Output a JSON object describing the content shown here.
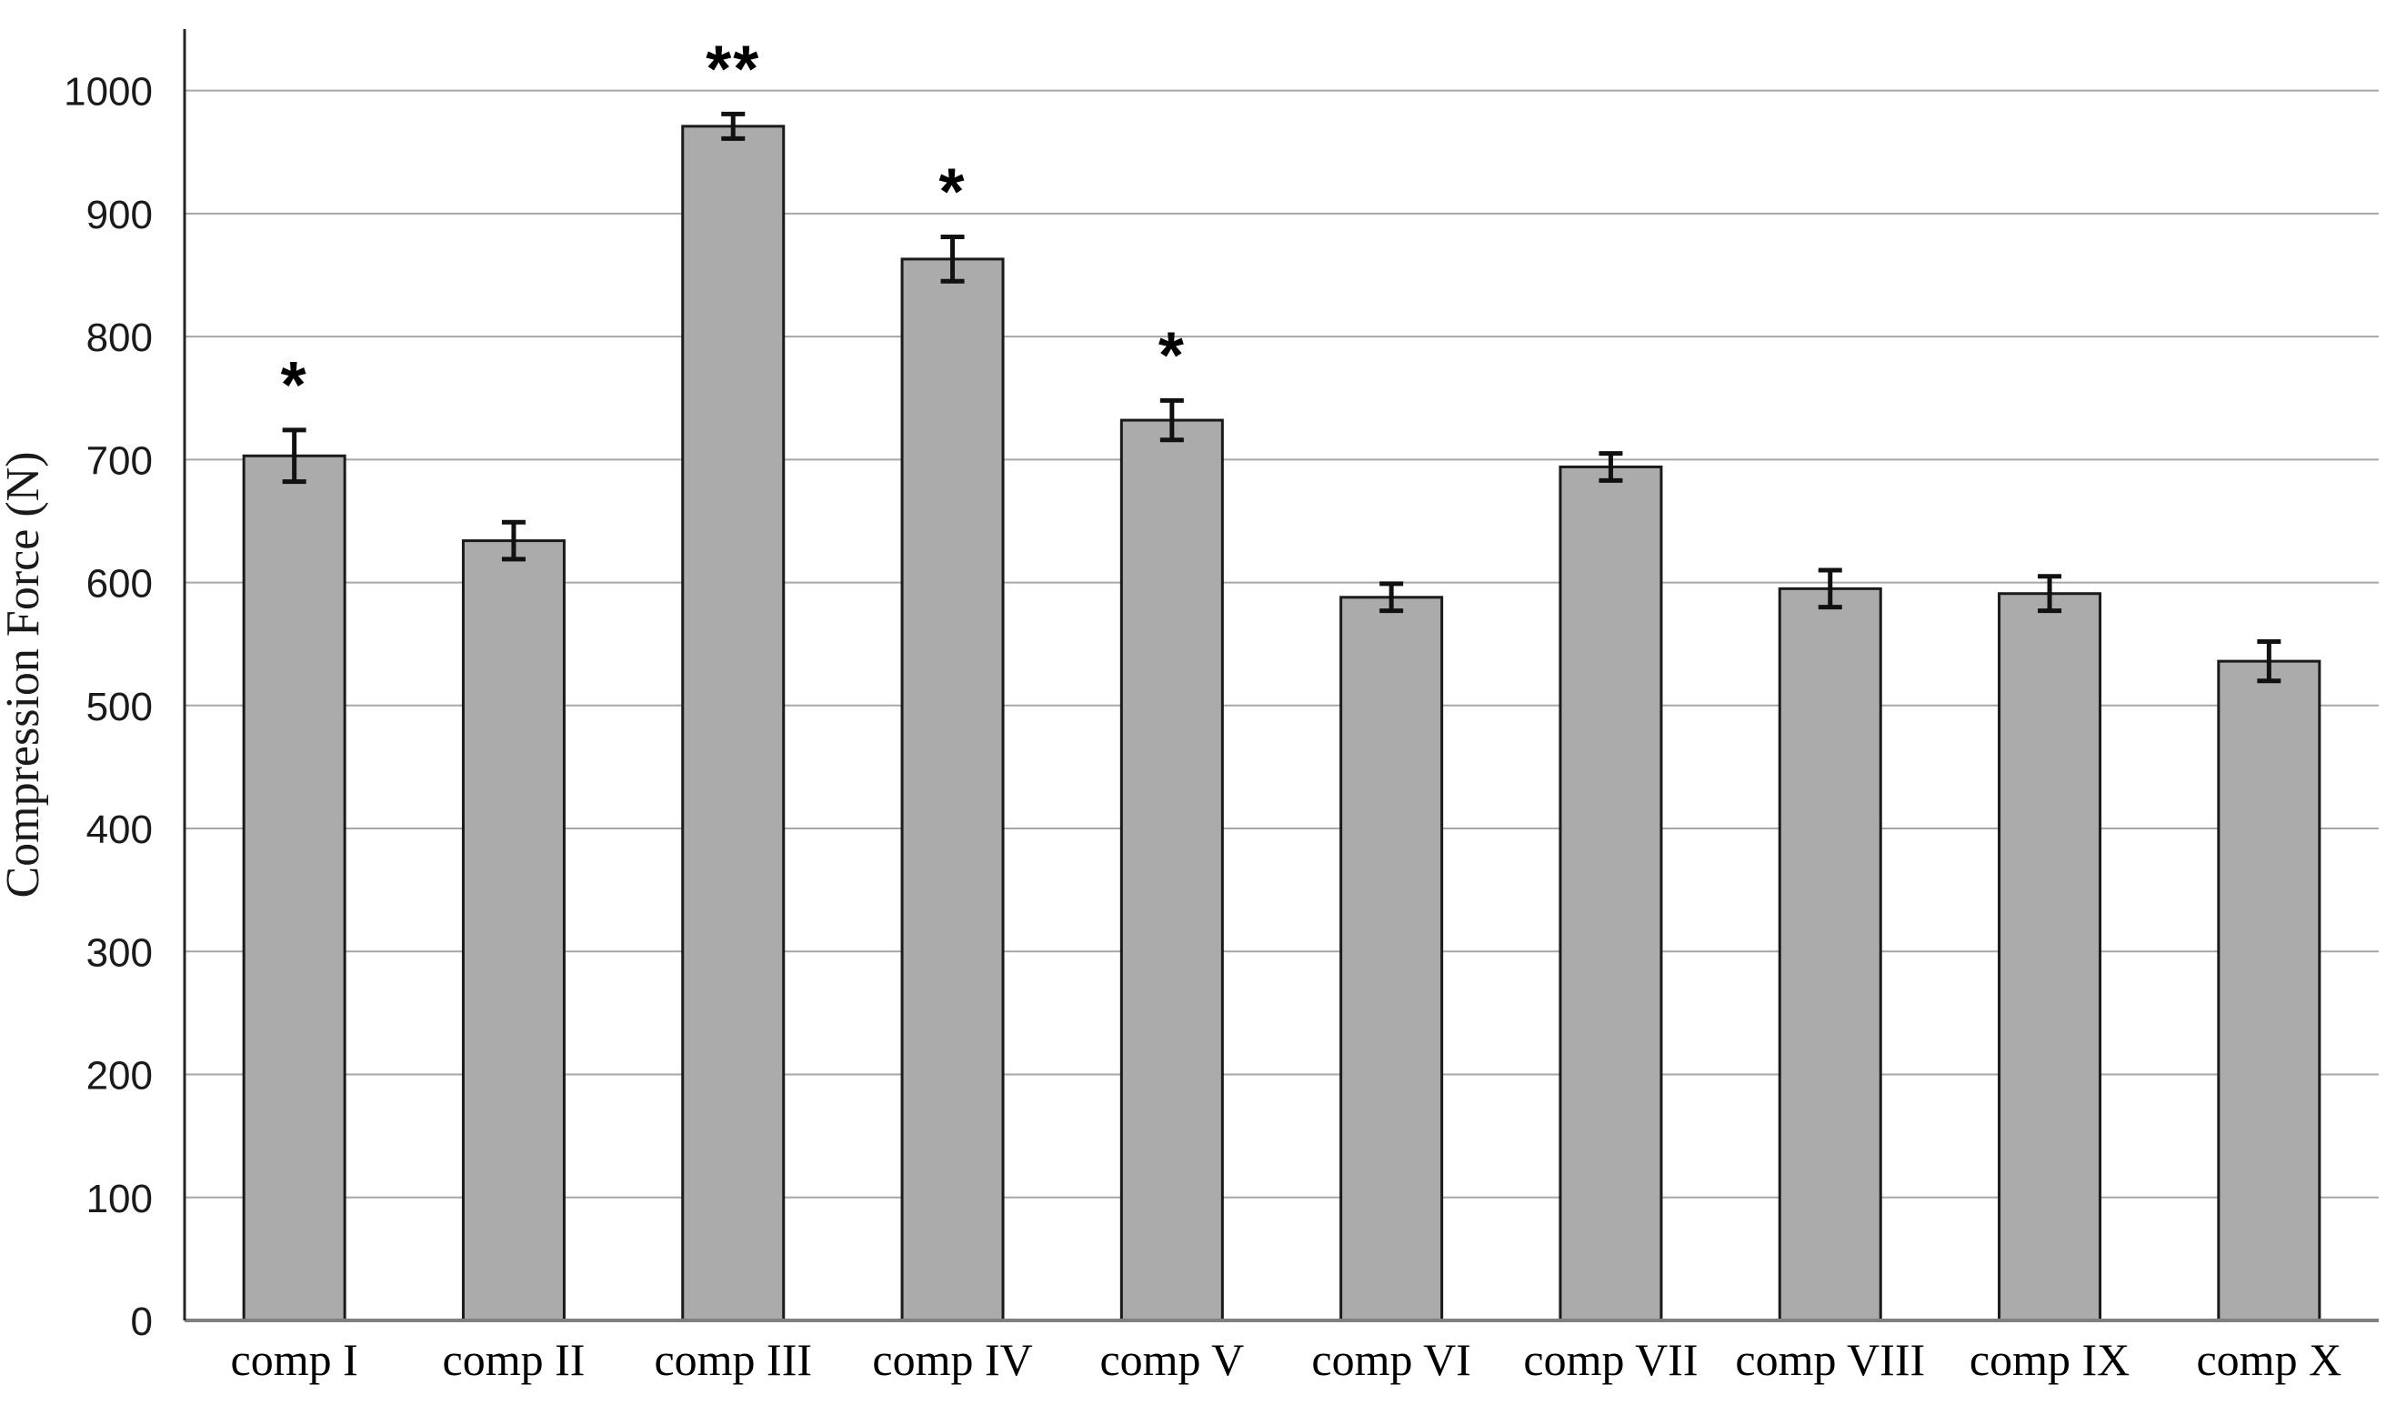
{
  "figure": {
    "kind": "scientific bar chart figure",
    "background_color": "#ffffff"
  },
  "chart_data": {
    "type": "bar",
    "title": "",
    "xlabel": "",
    "ylabel": "Compression Force (N)",
    "categories": [
      "comp I",
      "comp II",
      "comp III",
      "comp IV",
      "comp V",
      "comp VI",
      "comp VII",
      "comp VIII",
      "comp IX",
      "comp X"
    ],
    "values": [
      703,
      634,
      971,
      863,
      732,
      588,
      694,
      595,
      591,
      536
    ],
    "error_bars": [
      21,
      15,
      10,
      18,
      16,
      11,
      11,
      15,
      14,
      16
    ],
    "significance_markers": [
      "*",
      "",
      "**",
      "*",
      "*",
      "",
      "",
      "",
      "",
      ""
    ],
    "ylim": [
      0,
      1050
    ],
    "yticks": [
      0,
      100,
      200,
      300,
      400,
      500,
      600,
      700,
      800,
      900,
      1000
    ],
    "grid": "horizontal gridlines on, every 100 N",
    "legend": "none",
    "bar_fill_color": "#ababab",
    "bar_border_color": "#1a1a1a",
    "error_bar_color": "#111111",
    "gridline_color": "#a6a6a6",
    "baseline_color": "#808080",
    "axis_line_color": "#262626",
    "tick_label_color": "#1a1a1a"
  }
}
